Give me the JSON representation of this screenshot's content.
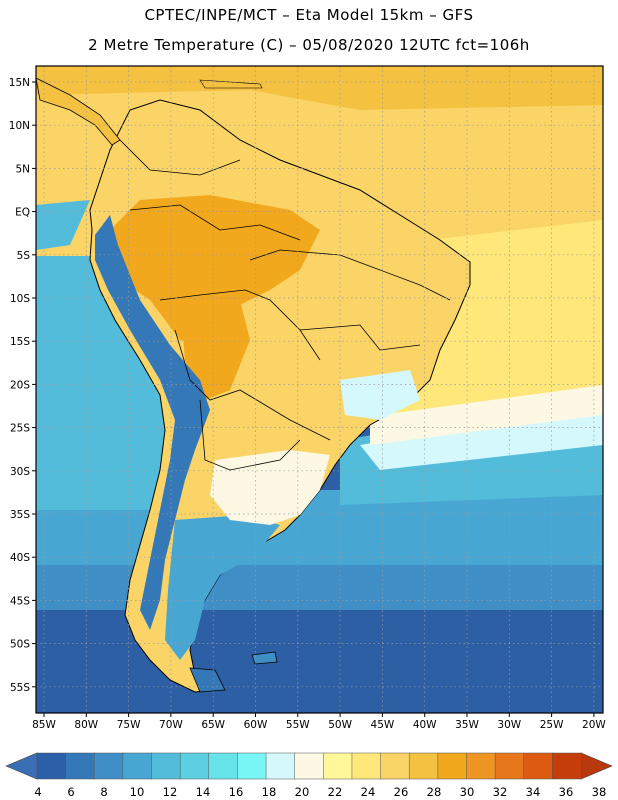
{
  "header": {
    "line1": "CPTEC/INPE/MCT –  Eta Model 15km – GFS",
    "line2": "2 Metre Temperature (C) – 05/08/2020 12UTC fct=106h"
  },
  "axes": {
    "lat_labels": [
      "15N",
      "10N",
      "5N",
      "EQ",
      "5S",
      "10S",
      "15S",
      "20S",
      "25S",
      "30S",
      "35S",
      "40S",
      "45S",
      "50S",
      "55S"
    ],
    "lon_labels": [
      "85W",
      "80W",
      "75W",
      "70W",
      "65W",
      "60W",
      "55W",
      "50W",
      "45W",
      "40W",
      "35W",
      "30W",
      "25W",
      "20W"
    ]
  },
  "colorbar": {
    "labels": [
      "4",
      "6",
      "8",
      "10",
      "12",
      "14",
      "16",
      "18",
      "20",
      "22",
      "24",
      "26",
      "28",
      "30",
      "32",
      "34",
      "36",
      "38"
    ],
    "colors": [
      "#2b5fa8",
      "#3578b8",
      "#3f8fc6",
      "#48a7d2",
      "#52bcda",
      "#5cd0e0",
      "#66e4ea",
      "#78f5f5",
      "#d4f8fb",
      "#fdf8e4",
      "#fff79a",
      "#ffe77a",
      "#fad466",
      "#f5c140",
      "#f2a81d",
      "#ee9524",
      "#e8761a",
      "#dc5a12",
      "#c43d0a"
    ],
    "min_color": "#3a6fb6",
    "max_color": "#b83a0c"
  },
  "field": {
    "ocean_south": "#2d5fa5",
    "ocean_mid": "#3f8fc6",
    "ocean_light": "#52bcda",
    "ocean_cyan": "#78f5f5",
    "warm_sea": "#ffe77a",
    "land_hot": "#f2a81d",
    "land_warm": "#fad466",
    "andes_cold": "#3578b8"
  }
}
